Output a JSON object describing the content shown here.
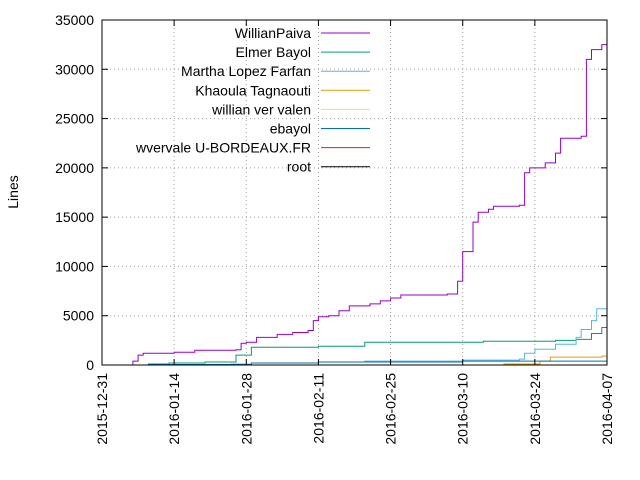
{
  "chart_data": {
    "type": "line",
    "title": "",
    "xlabel": "",
    "ylabel": "Lines",
    "xlim": [
      "2015-12-31",
      "2016-04-07"
    ],
    "ylim": [
      0,
      35000
    ],
    "x_ticks": [
      "2015-12-31",
      "2016-01-14",
      "2016-01-28",
      "2016-02-11",
      "2016-02-25",
      "2016-03-10",
      "2016-03-24",
      "2016-04-07"
    ],
    "y_ticks": [
      0,
      5000,
      10000,
      15000,
      20000,
      25000,
      30000,
      35000
    ],
    "grid": true,
    "legend_position": "top-left",
    "series": [
      {
        "name": "WillianPaiva",
        "color": "#9400d3",
        "points": [
          [
            "2016-01-06",
            0
          ],
          [
            "2016-01-06",
            400
          ],
          [
            "2016-01-07",
            800
          ],
          [
            "2016-01-07",
            1000
          ],
          [
            "2016-01-08",
            1200
          ],
          [
            "2016-01-14",
            1300
          ],
          [
            "2016-01-18",
            1500
          ],
          [
            "2016-01-26",
            1550
          ],
          [
            "2016-01-27",
            2200
          ],
          [
            "2016-01-28",
            2300
          ],
          [
            "2016-01-30",
            2800
          ],
          [
            "2016-02-03",
            3100
          ],
          [
            "2016-02-06",
            3300
          ],
          [
            "2016-02-09",
            3500
          ],
          [
            "2016-02-10",
            4500
          ],
          [
            "2016-02-11",
            4900
          ],
          [
            "2016-02-13",
            5000
          ],
          [
            "2016-02-15",
            5500
          ],
          [
            "2016-02-17",
            6000
          ],
          [
            "2016-02-21",
            6200
          ],
          [
            "2016-02-23",
            6500
          ],
          [
            "2016-02-25",
            6800
          ],
          [
            "2016-02-27",
            7100
          ],
          [
            "2016-03-07",
            7200
          ],
          [
            "2016-03-09",
            8500
          ],
          [
            "2016-03-10",
            11500
          ],
          [
            "2016-03-12",
            14500
          ],
          [
            "2016-03-13",
            15500
          ],
          [
            "2016-03-15",
            15800
          ],
          [
            "2016-03-16",
            16100
          ],
          [
            "2016-03-21",
            16200
          ],
          [
            "2016-03-22",
            19500
          ],
          [
            "2016-03-23",
            20000
          ],
          [
            "2016-03-26",
            20500
          ],
          [
            "2016-03-28",
            21500
          ],
          [
            "2016-03-29",
            23000
          ],
          [
            "2016-04-02",
            23200
          ],
          [
            "2016-04-03",
            31000
          ],
          [
            "2016-04-04",
            32000
          ],
          [
            "2016-04-06",
            32500
          ],
          [
            "2016-04-07",
            32900
          ]
        ]
      },
      {
        "name": "Elmer Bayol",
        "color": "#009e73",
        "points": [
          [
            "2016-01-06",
            0
          ],
          [
            "2016-01-09",
            100
          ],
          [
            "2016-01-13",
            200
          ],
          [
            "2016-01-20",
            300
          ],
          [
            "2016-01-26",
            1000
          ],
          [
            "2016-01-29",
            1800
          ],
          [
            "2016-02-11",
            1900
          ],
          [
            "2016-02-20",
            2300
          ],
          [
            "2016-03-14",
            2400
          ],
          [
            "2016-03-28",
            2500
          ],
          [
            "2016-04-01",
            2600
          ],
          [
            "2016-04-04",
            3200
          ],
          [
            "2016-04-06",
            3800
          ],
          [
            "2016-04-07",
            4100
          ]
        ]
      },
      {
        "name": "Martha Lopez Farfan",
        "color": "#56b4e9",
        "points": [
          [
            "2016-02-01",
            0
          ],
          [
            "2016-02-11",
            300
          ],
          [
            "2016-02-20",
            400
          ],
          [
            "2016-03-10",
            500
          ],
          [
            "2016-03-21",
            600
          ],
          [
            "2016-03-22",
            1200
          ],
          [
            "2016-03-24",
            1600
          ],
          [
            "2016-03-28",
            2100
          ],
          [
            "2016-04-01",
            2800
          ],
          [
            "2016-04-02",
            3600
          ],
          [
            "2016-04-04",
            4500
          ],
          [
            "2016-04-05",
            5700
          ],
          [
            "2016-04-07",
            5800
          ]
        ]
      },
      {
        "name": "Khaoula Tagnaouti",
        "color": "#e69f00",
        "points": [
          [
            "2016-01-06",
            0
          ],
          [
            "2016-03-18",
            100
          ],
          [
            "2016-03-25",
            400
          ],
          [
            "2016-03-27",
            800
          ],
          [
            "2016-04-06",
            900
          ],
          [
            "2016-04-07",
            1000
          ]
        ]
      },
      {
        "name": "willian ver valen",
        "color": "#f0e442",
        "points": [
          [
            "2016-01-06",
            0
          ],
          [
            "2016-04-07",
            50
          ]
        ]
      },
      {
        "name": "ebayol",
        "color": "#0072b2",
        "points": [
          [
            "2016-01-06",
            0
          ],
          [
            "2016-01-09",
            50
          ],
          [
            "2016-01-25",
            80
          ],
          [
            "2016-01-29",
            200
          ],
          [
            "2016-02-11",
            300
          ],
          [
            "2016-03-10",
            400
          ],
          [
            "2016-04-07",
            420
          ]
        ]
      },
      {
        "name": "wvervale U-BORDEAUX.FR",
        "color": "#e51e10",
        "points": [
          [
            "2016-01-06",
            0
          ],
          [
            "2016-04-07",
            20
          ]
        ]
      },
      {
        "name": "root",
        "color": "#000000",
        "points": [
          [
            "2016-01-06",
            0
          ],
          [
            "2016-04-07",
            10
          ]
        ]
      }
    ]
  }
}
